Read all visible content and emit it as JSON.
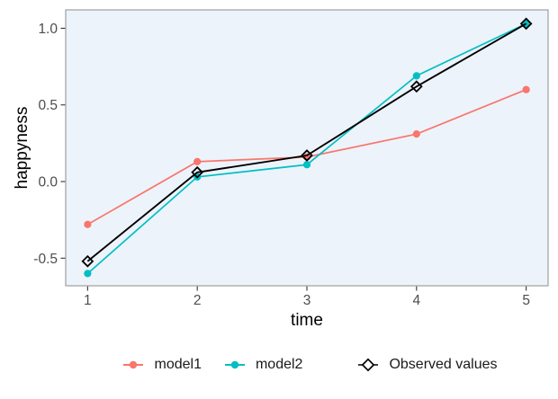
{
  "chart_data": {
    "type": "line",
    "title": "",
    "x": [
      1,
      2,
      3,
      4,
      5
    ],
    "series": [
      {
        "name": "model1",
        "color": "#F8766D",
        "marker": "circle",
        "values": [
          -0.28,
          0.13,
          0.16,
          0.31,
          0.6
        ]
      },
      {
        "name": "model2",
        "color": "#00BFC4",
        "marker": "circle",
        "values": [
          -0.6,
          0.03,
          0.11,
          0.69,
          1.03
        ]
      },
      {
        "name": "Observed values",
        "color": "#000000",
        "marker": "open-diamond",
        "values": [
          -0.52,
          0.06,
          0.17,
          0.62,
          1.03
        ]
      }
    ],
    "xlabel": "time",
    "ylabel": "happyness",
    "xlim": [
      0.8,
      5.2
    ],
    "ylim": [
      -0.68,
      1.12
    ],
    "x_ticks": {
      "values": [
        1,
        2,
        3,
        4,
        5
      ],
      "labels": [
        "1",
        "2",
        "3",
        "4",
        "5"
      ]
    },
    "y_ticks": {
      "values": [
        -0.5,
        0.0,
        0.5,
        1.0
      ],
      "labels": [
        "-0.5",
        "0.0",
        "0.5",
        "1.0"
      ]
    },
    "grid": false,
    "legend_position": "bottom",
    "colors": {
      "panel_bg": "#EDF3FA",
      "panel_border": "#A6A6A6",
      "tick_mark": "#333333",
      "tick_label": "#4D4D4D",
      "axis_title": "#000000",
      "legend_text": "#1A1A1A",
      "background": "#FFFFFF"
    }
  }
}
